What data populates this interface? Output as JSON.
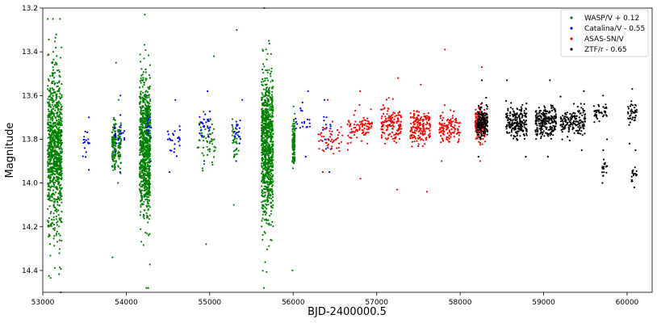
{
  "chart_data": {
    "type": "scatter",
    "xlabel": "BJD-2400000.5",
    "ylabel": "Magnitude",
    "xlim": [
      53000,
      60300
    ],
    "ylim": [
      14.5,
      13.2
    ],
    "y_inverted": true,
    "grid": false,
    "legend_position": "top-right",
    "x_ticks": [
      53000,
      54000,
      55000,
      56000,
      57000,
      58000,
      59000,
      60000
    ],
    "x_tick_labels": [
      "53000",
      "54000",
      "55000",
      "56000",
      "57000",
      "58000",
      "59000",
      "60000"
    ],
    "y_ticks": [
      13.2,
      13.4,
      13.6,
      13.8,
      14.0,
      14.2,
      14.4
    ],
    "y_tick_labels": [
      "13.2",
      "13.4",
      "13.6",
      "13.8",
      "14.0",
      "14.2",
      "14.4"
    ],
    "series": [
      {
        "name": "WASP/V + 0.12",
        "color": "#008000",
        "clusters": [
          {
            "x": [
              53060,
              53230
            ],
            "center": 13.85,
            "spread": 0.38,
            "min": 13.25,
            "max": 14.5,
            "n": 900
          },
          {
            "x": [
              53830,
              53880
            ],
            "center": 13.83,
            "spread": 0.12,
            "min": 13.45,
            "max": 14.34,
            "n": 120
          },
          {
            "x": [
              53900,
              53940
            ],
            "center": 13.82,
            "spread": 0.1,
            "min": 13.62,
            "max": 14.0,
            "n": 60
          },
          {
            "x": [
              54160,
              54290
            ],
            "center": 13.83,
            "spread": 0.3,
            "min": 13.23,
            "max": 14.48,
            "n": 800
          },
          {
            "x": [
              54850,
              55070
            ],
            "center": 13.8,
            "spread": 0.12,
            "min": 13.42,
            "max": 14.28,
            "n": 60
          },
          {
            "x": [
              55270,
              55360
            ],
            "center": 13.8,
            "spread": 0.1,
            "min": 13.3,
            "max": 14.1,
            "n": 40
          },
          {
            "x": [
              55620,
              55760
            ],
            "center": 13.83,
            "spread": 0.32,
            "min": 13.2,
            "max": 14.48,
            "n": 850
          },
          {
            "x": [
              55990,
              56020
            ],
            "center": 13.82,
            "spread": 0.1,
            "min": 13.65,
            "max": 14.4,
            "n": 120
          }
        ]
      },
      {
        "name": "Catalina/V - 0.55",
        "color": "#0000ff",
        "clusters": [
          {
            "x": [
              53480,
              53560
            ],
            "center": 13.82,
            "spread": 0.06,
            "min": 13.7,
            "max": 13.94,
            "n": 18
          },
          {
            "x": [
              53850,
              53980
            ],
            "center": 13.78,
            "spread": 0.07,
            "min": 13.6,
            "max": 13.95,
            "n": 28
          },
          {
            "x": [
              54250,
              54300
            ],
            "center": 13.75,
            "spread": 0.07,
            "min": 13.6,
            "max": 13.9,
            "n": 14
          },
          {
            "x": [
              54490,
              54650
            ],
            "center": 13.8,
            "spread": 0.06,
            "min": 13.62,
            "max": 13.95,
            "n": 26
          },
          {
            "x": [
              54870,
              55020
            ],
            "center": 13.72,
            "spread": 0.06,
            "min": 13.58,
            "max": 13.9,
            "n": 28
          },
          {
            "x": [
              55260,
              55400
            ],
            "center": 13.76,
            "spread": 0.05,
            "min": 13.62,
            "max": 13.9,
            "n": 20
          },
          {
            "x": [
              55990,
              56200
            ],
            "center": 13.72,
            "spread": 0.06,
            "min": 13.58,
            "max": 13.88,
            "n": 22
          },
          {
            "x": [
              56350,
              56450
            ],
            "center": 13.78,
            "spread": 0.08,
            "min": 13.62,
            "max": 13.95,
            "n": 16
          }
        ]
      },
      {
        "name": "ASAS-SN/V",
        "color": "#ff0000",
        "clusters": [
          {
            "x": [
              56300,
              56600
            ],
            "center": 13.8,
            "spread": 0.07,
            "min": 13.62,
            "max": 13.95,
            "n": 50
          },
          {
            "x": [
              56650,
              56950
            ],
            "center": 13.75,
            "spread": 0.08,
            "min": 13.58,
            "max": 13.98,
            "n": 90
          },
          {
            "x": [
              57050,
              57300
            ],
            "center": 13.73,
            "spread": 0.08,
            "min": 13.52,
            "max": 14.03,
            "n": 140
          },
          {
            "x": [
              57400,
              57650
            ],
            "center": 13.74,
            "spread": 0.08,
            "min": 13.55,
            "max": 14.04,
            "n": 170
          },
          {
            "x": [
              57750,
              58000
            ],
            "center": 13.75,
            "spread": 0.07,
            "min": 13.39,
            "max": 13.9,
            "n": 120
          },
          {
            "x": [
              58180,
              58300
            ],
            "center": 13.73,
            "spread": 0.07,
            "min": 13.47,
            "max": 13.9,
            "n": 130
          }
        ]
      },
      {
        "name": "ZTF/r - 0.65",
        "color": "#000000",
        "clusters": [
          {
            "x": [
              58200,
              58330
            ],
            "center": 13.72,
            "spread": 0.07,
            "min": 13.53,
            "max": 13.88,
            "n": 180
          },
          {
            "x": [
              58550,
              58800
            ],
            "center": 13.72,
            "spread": 0.07,
            "min": 13.53,
            "max": 13.88,
            "n": 200
          },
          {
            "x": [
              58900,
              59150
            ],
            "center": 13.72,
            "spread": 0.07,
            "min": 13.53,
            "max": 13.88,
            "n": 220
          },
          {
            "x": [
              59200,
              59500
            ],
            "center": 13.72,
            "spread": 0.06,
            "min": 13.58,
            "max": 13.85,
            "n": 160
          },
          {
            "x": [
              59600,
              59760
            ],
            "center": 13.68,
            "spread": 0.04,
            "min": 13.6,
            "max": 13.8,
            "n": 40
          },
          {
            "x": [
              59700,
              59760
            ],
            "center": 13.93,
            "spread": 0.03,
            "min": 13.85,
            "max": 14.0,
            "n": 20
          },
          {
            "x": [
              60000,
              60120
            ],
            "center": 13.68,
            "spread": 0.05,
            "min": 13.57,
            "max": 13.82,
            "n": 40
          },
          {
            "x": [
              60050,
              60120
            ],
            "center": 13.96,
            "spread": 0.03,
            "min": 13.85,
            "max": 14.02,
            "n": 18
          }
        ]
      }
    ]
  }
}
